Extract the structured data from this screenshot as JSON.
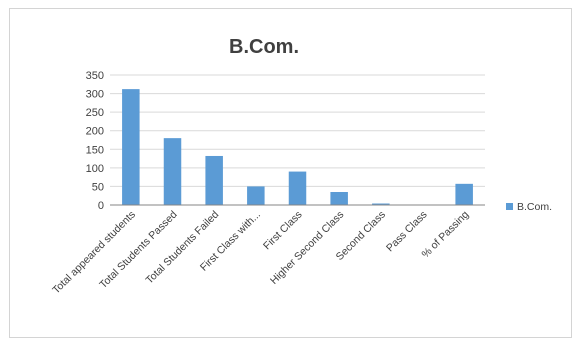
{
  "chart_data": {
    "type": "bar",
    "title": "B.Com.",
    "categories": [
      "Total appeared students",
      "Total Students Passed",
      "Total Students Failed",
      "First Class with...",
      "First Class",
      "Higher  Second Class",
      "Second Class",
      "Pass Class",
      "% of Passing"
    ],
    "series": [
      {
        "name": "B.Com.",
        "values": [
          312,
          180,
          132,
          50,
          90,
          35,
          4,
          1,
          57
        ]
      }
    ],
    "yticks": [
      "0",
      "50",
      "100",
      "150",
      "200",
      "250",
      "300",
      "350"
    ],
    "ylim": [
      0,
      350
    ],
    "grid": true,
    "legend_position": "right",
    "colors": {
      "bar": "#5b9bd5",
      "grid": "#d9d9d9",
      "axis": "#868686",
      "text": "#404040"
    }
  }
}
